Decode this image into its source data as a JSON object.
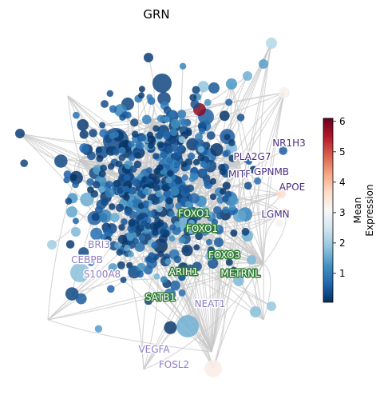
{
  "chart_data": {
    "type": "scatter",
    "title": "GRN",
    "colorbar": {
      "label": "Mean\nExpression",
      "ticks": [
        1,
        2,
        3,
        4,
        5,
        6
      ],
      "range": [
        0.05,
        6.1
      ],
      "colormap": "RdBu_r",
      "colors": [
        "#053061",
        "#2166ac",
        "#4393c3",
        "#92c5de",
        "#d1e5f0",
        "#f7f7f7",
        "#fddbc7",
        "#f4a582",
        "#d6604d",
        "#b2182b",
        "#67001f"
      ]
    },
    "edge_color": "#c8c8c8",
    "label_colors": {
      "tf": "#2e7d32",
      "purple": "#4b2e83",
      "lavender": "#8e7cc3"
    },
    "labels": [
      {
        "text": "NR1H3",
        "group": "purple"
      },
      {
        "text": "PLA2G7",
        "group": "purple"
      },
      {
        "text": "MITF",
        "group": "purple"
      },
      {
        "text": "GPNMB",
        "group": "purple"
      },
      {
        "text": "APOE",
        "group": "purple"
      },
      {
        "text": "LGMN",
        "group": "purple"
      },
      {
        "text": "FOXO1",
        "group": "tf"
      },
      {
        "text": "FOXO1",
        "group": "tf"
      },
      {
        "text": "FOXO3",
        "group": "tf"
      },
      {
        "text": "ARIH1",
        "group": "tf"
      },
      {
        "text": "METRNL",
        "group": "tf"
      },
      {
        "text": "SATB1",
        "group": "tf"
      },
      {
        "text": "BRI3",
        "group": "lavender"
      },
      {
        "text": "CEBPB",
        "group": "lavender"
      },
      {
        "text": "S100A8",
        "group": "lavender"
      },
      {
        "text": "NEAT1",
        "group": "lavender"
      },
      {
        "text": "VEGFA",
        "group": "lavender"
      },
      {
        "text": "FOSL2",
        "group": "lavender"
      }
    ]
  }
}
